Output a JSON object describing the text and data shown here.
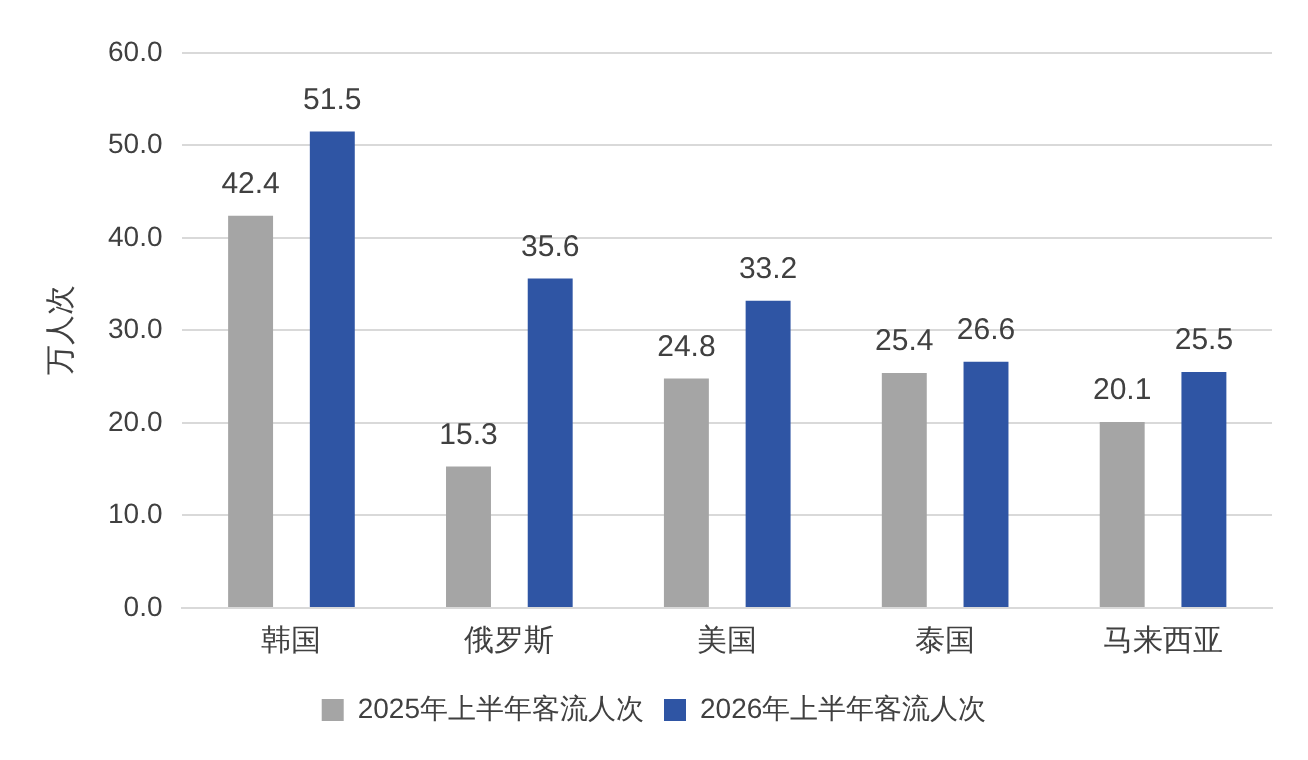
{
  "chart_data": {
    "type": "bar",
    "ylabel": "万人次",
    "categories": [
      "韩国",
      "俄罗斯",
      "美国",
      "泰国",
      "马来西亚"
    ],
    "series": [
      {
        "name": "2025年上半年客流人次",
        "color": "#a5a5a5",
        "values": [
          42.4,
          15.3,
          24.8,
          25.4,
          20.1
        ]
      },
      {
        "name": "2026年上半年客流人次",
        "color": "#2f55a4",
        "values": [
          51.5,
          35.6,
          33.2,
          26.6,
          25.5
        ]
      }
    ],
    "ylim": [
      0,
      60
    ],
    "yticks": [
      {
        "value": 0,
        "label": "0.0"
      },
      {
        "value": 10,
        "label": "10.0"
      },
      {
        "value": 20,
        "label": "20.0"
      },
      {
        "value": 30,
        "label": "30.0"
      },
      {
        "value": 40,
        "label": "40.0"
      },
      {
        "value": 50,
        "label": "50.0"
      },
      {
        "value": 60,
        "label": "60.0"
      }
    ],
    "grid": "y",
    "legend": "bottom",
    "data_labels": true
  }
}
